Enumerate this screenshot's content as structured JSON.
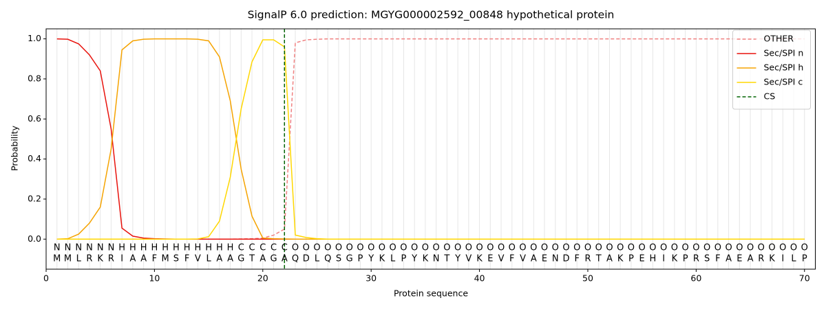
{
  "chart_data": {
    "type": "line",
    "title": "SignalP 6.0 prediction: MGYG000002592_00848 hypothetical protein",
    "xlabel": "Protein sequence",
    "ylabel": "Probability",
    "x": [
      1,
      2,
      3,
      4,
      5,
      6,
      7,
      8,
      9,
      10,
      11,
      12,
      13,
      14,
      15,
      16,
      17,
      18,
      19,
      20,
      21,
      22,
      23,
      24,
      25,
      26,
      27,
      28,
      29,
      30,
      31,
      32,
      33,
      34,
      35,
      36,
      37,
      38,
      39,
      40,
      41,
      42,
      43,
      44,
      45,
      46,
      47,
      48,
      49,
      50,
      51,
      52,
      53,
      54,
      55,
      56,
      57,
      58,
      59,
      60,
      61,
      62,
      63,
      64,
      65,
      66,
      67,
      68,
      69,
      70
    ],
    "residues": [
      "M",
      "M",
      "L",
      "R",
      "K",
      "R",
      "I",
      "A",
      "A",
      "F",
      "M",
      "S",
      "F",
      "V",
      "L",
      "A",
      "A",
      "G",
      "T",
      "A",
      "G",
      "A",
      "Q",
      "D",
      "L",
      "Q",
      "S",
      "G",
      "P",
      "Y",
      "K",
      "L",
      "P",
      "Y",
      "K",
      "N",
      "T",
      "Y",
      "V",
      "K",
      "E",
      "V",
      "F",
      "V",
      "A",
      "E",
      "N",
      "D",
      "F",
      "R",
      "T",
      "A",
      "K",
      "P",
      "E",
      "H",
      "I",
      "K",
      "P",
      "R",
      "S",
      "F",
      "A",
      "E",
      "A",
      "R",
      "K",
      "I",
      "L",
      "P"
    ],
    "region_labels": [
      "N",
      "N",
      "N",
      "N",
      "N",
      "N",
      "H",
      "H",
      "H",
      "H",
      "H",
      "H",
      "H",
      "H",
      "H",
      "H",
      "H",
      "C",
      "C",
      "C",
      "C",
      "C",
      "O",
      "O",
      "O",
      "O",
      "O",
      "O",
      "O",
      "O",
      "O",
      "O",
      "O",
      "O",
      "O",
      "O",
      "O",
      "O",
      "O",
      "O",
      "O",
      "O",
      "O",
      "O",
      "O",
      "O",
      "O",
      "O",
      "O",
      "O",
      "O",
      "O",
      "O",
      "O",
      "O",
      "O",
      "O",
      "O",
      "O",
      "O",
      "O",
      "O",
      "O",
      "O",
      "O",
      "O",
      "O",
      "O",
      "O",
      "O"
    ],
    "region_colors": {
      "N": "red",
      "H": "orange",
      "C": "gold",
      "O": "gray"
    },
    "series": [
      {
        "name": "OTHER",
        "color": "#f08080",
        "dash": true,
        "values": [
          0,
          0,
          0,
          0,
          0,
          0,
          0,
          0,
          0,
          0,
          0,
          0,
          0,
          0,
          0,
          0,
          0,
          0.001,
          0.002,
          0.005,
          0.02,
          0.05,
          0.98,
          0.995,
          0.998,
          1,
          1,
          1,
          1,
          1,
          1,
          1,
          1,
          1,
          1,
          1,
          1,
          1,
          1,
          1,
          1,
          1,
          1,
          1,
          1,
          1,
          1,
          1,
          1,
          1,
          1,
          1,
          1,
          1,
          1,
          1,
          1,
          1,
          1,
          1,
          1,
          1,
          1,
          1,
          1,
          1,
          1,
          1,
          1,
          1
        ]
      },
      {
        "name": "Sec/SPI n",
        "color": "#e8120c",
        "dash": false,
        "values": [
          1.0,
          0.998,
          0.975,
          0.92,
          0.84,
          0.55,
          0.055,
          0.015,
          0.005,
          0.002,
          0.001,
          0,
          0,
          0,
          0,
          0,
          0,
          0,
          0,
          0,
          0,
          0,
          0,
          0,
          0,
          0,
          0,
          0,
          0,
          0,
          0,
          0,
          0,
          0,
          0,
          0,
          0,
          0,
          0,
          0,
          0,
          0,
          0,
          0,
          0,
          0,
          0,
          0,
          0,
          0,
          0,
          0,
          0,
          0,
          0,
          0,
          0,
          0,
          0,
          0,
          0,
          0,
          0,
          0,
          0,
          0,
          0,
          0,
          0,
          0
        ]
      },
      {
        "name": "Sec/SPI h",
        "color": "#f5a300",
        "dash": false,
        "values": [
          0,
          0.002,
          0.025,
          0.08,
          0.16,
          0.45,
          0.945,
          0.99,
          0.998,
          1,
          1,
          1,
          1,
          0.998,
          0.99,
          0.91,
          0.69,
          0.35,
          0.115,
          0.005,
          0.002,
          0.001,
          0,
          0,
          0,
          0,
          0,
          0,
          0,
          0,
          0,
          0,
          0,
          0,
          0,
          0,
          0,
          0,
          0,
          0,
          0,
          0,
          0,
          0,
          0,
          0,
          0,
          0,
          0,
          0,
          0,
          0,
          0,
          0,
          0,
          0,
          0,
          0,
          0,
          0,
          0,
          0,
          0,
          0,
          0,
          0,
          0,
          0,
          0,
          0
        ]
      },
      {
        "name": "Sec/SPI c",
        "color": "#ffd700",
        "dash": false,
        "values": [
          0,
          0,
          0,
          0,
          0,
          0,
          0,
          0,
          0,
          0,
          0,
          0,
          0,
          0.001,
          0.012,
          0.09,
          0.31,
          0.65,
          0.885,
          0.995,
          0.995,
          0.96,
          0.02,
          0.008,
          0.002,
          0,
          0,
          0,
          0,
          0,
          0,
          0,
          0,
          0,
          0,
          0,
          0,
          0,
          0,
          0,
          0,
          0,
          0,
          0,
          0,
          0,
          0,
          0,
          0,
          0,
          0,
          0,
          0,
          0,
          0,
          0,
          0,
          0,
          0,
          0,
          0,
          0,
          0,
          0,
          0,
          0,
          0,
          0,
          0,
          0
        ]
      }
    ],
    "cleavage_site": {
      "name": "CS",
      "color": "darkgreen",
      "x": 22
    },
    "xlim": [
      0,
      71
    ],
    "ylim": [
      -0.15,
      1.05
    ],
    "xticks": [
      0,
      10,
      20,
      30,
      40,
      50,
      60,
      70
    ],
    "yticks": [
      {
        "value": 0,
        "label": "0.0"
      },
      0.2,
      0.4,
      0.6,
      0.8,
      {
        "value": 1,
        "label": "1.0"
      }
    ],
    "xgrid": true,
    "legend": "upper right"
  }
}
